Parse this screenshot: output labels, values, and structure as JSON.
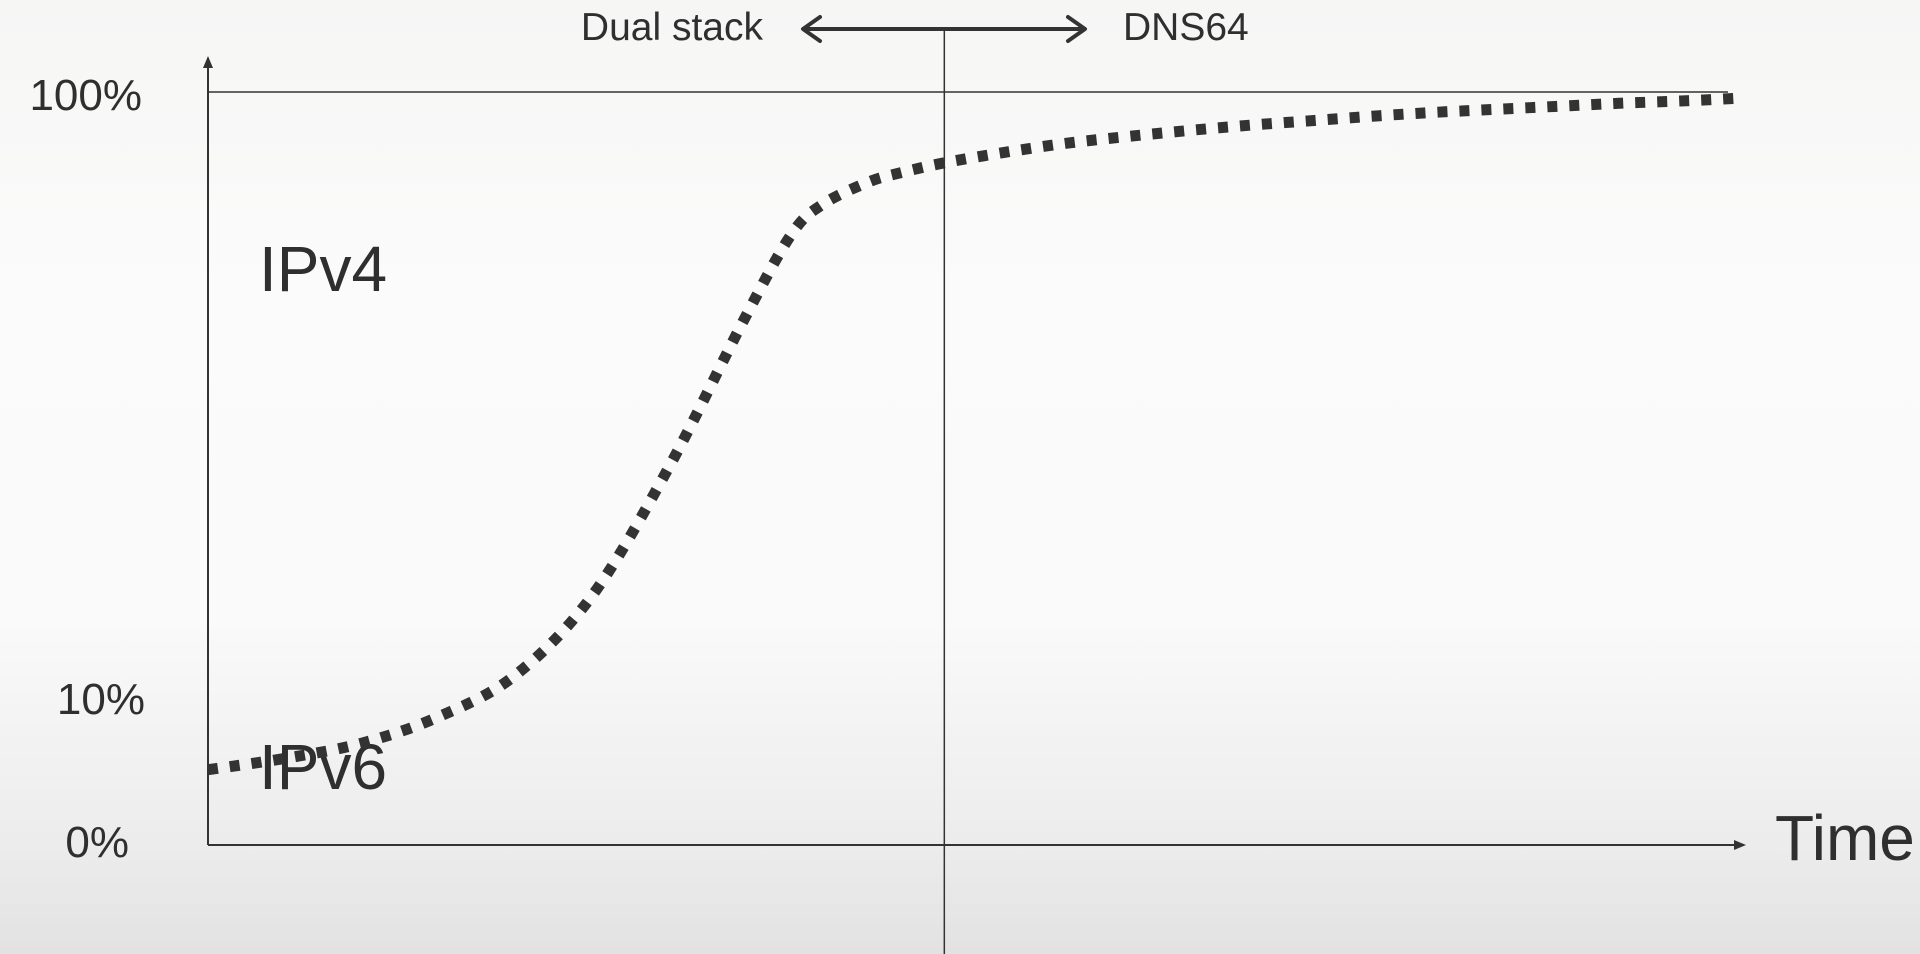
{
  "chart_data": {
    "type": "line",
    "title": "",
    "xlabel": "Time",
    "ylabel": "",
    "x_range": [
      0,
      100
    ],
    "ylim": [
      0,
      100
    ],
    "y_tick_labels": [
      {
        "value": 100,
        "label": "100%"
      },
      {
        "value": 10,
        "label": "10%"
      },
      {
        "value": 0,
        "label": "0%"
      }
    ],
    "region_labels": {
      "upper": "IPv4",
      "lower": "IPv6"
    },
    "divider": {
      "x": 48,
      "left_label": "Dual stack",
      "right_label": "DNS64"
    },
    "series": [
      {
        "style": "dotted",
        "color": "#333333",
        "x": [
          0,
          5,
          10,
          15,
          20,
          25,
          30,
          35,
          38,
          40,
          43,
          45,
          48,
          52,
          56,
          60,
          64,
          68,
          72,
          76,
          80,
          84,
          88,
          92,
          96,
          100
        ],
        "y": [
          10,
          11.5,
          13.5,
          17,
          22.5,
          33,
          50,
          70,
          81,
          85,
          88,
          89.2,
          90.6,
          92,
          93.2,
          94.1,
          94.9,
          95.6,
          96.2,
          96.8,
          97.3,
          97.7,
          98.1,
          98.5,
          98.8,
          99.2
        ]
      }
    ],
    "grid": false,
    "legend": "none"
  }
}
